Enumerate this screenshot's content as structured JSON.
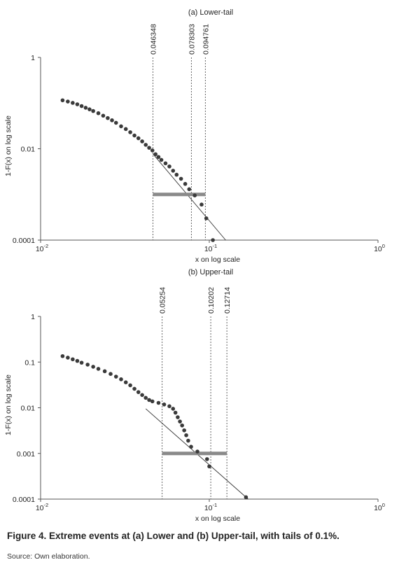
{
  "chart_data": [
    {
      "type": "scatter",
      "title": "(a) Lower-tail",
      "xlabel": "x on log scale",
      "ylabel": "1-F(x) on log scale",
      "xscale": "log",
      "yscale": "log",
      "xlim": [
        0.01,
        1
      ],
      "ylim": [
        0.0001,
        1
      ],
      "xticks": [
        {
          "base": "10",
          "exp": "-2"
        },
        {
          "base": "10",
          "exp": "-1"
        },
        {
          "base": "10",
          "exp": "0"
        }
      ],
      "yticks": [
        "1",
        "0.01",
        "0.0001"
      ],
      "thresholds": [
        "0.046348",
        "0.078303",
        "0.094761"
      ],
      "band": {
        "x0": 0.046348,
        "x1": 0.094761,
        "y": 0.001
      },
      "fit_line": [
        [
          0.046348,
          0.0077
        ],
        [
          0.125,
          0.0001
        ]
      ],
      "points": [
        [
          0.0135,
          0.115
        ],
        [
          0.0145,
          0.108
        ],
        [
          0.0155,
          0.101
        ],
        [
          0.0165,
          0.094
        ],
        [
          0.0175,
          0.086
        ],
        [
          0.0185,
          0.079
        ],
        [
          0.0195,
          0.073
        ],
        [
          0.0205,
          0.067
        ],
        [
          0.022,
          0.06
        ],
        [
          0.0235,
          0.053
        ],
        [
          0.025,
          0.047
        ],
        [
          0.0265,
          0.042
        ],
        [
          0.028,
          0.037
        ],
        [
          0.03,
          0.031
        ],
        [
          0.032,
          0.027
        ],
        [
          0.034,
          0.023
        ],
        [
          0.036,
          0.0195
        ],
        [
          0.038,
          0.017
        ],
        [
          0.04,
          0.0145
        ],
        [
          0.042,
          0.0122
        ],
        [
          0.044,
          0.0105
        ],
        [
          0.046,
          0.0092
        ],
        [
          0.048,
          0.0076
        ],
        [
          0.05,
          0.0066
        ],
        [
          0.052,
          0.0057
        ],
        [
          0.055,
          0.0048
        ],
        [
          0.058,
          0.0041
        ],
        [
          0.061,
          0.0033
        ],
        [
          0.064,
          0.0027
        ],
        [
          0.068,
          0.0022
        ],
        [
          0.072,
          0.0017
        ],
        [
          0.076,
          0.0013
        ],
        [
          0.082,
          0.00095
        ],
        [
          0.09,
          0.0006
        ],
        [
          0.096,
          0.0003
        ],
        [
          0.105,
          0.0001
        ]
      ]
    },
    {
      "type": "scatter",
      "title": "(b) Upper-tail",
      "xlabel": "x on log scale",
      "ylabel": "1-F(x) on log scale",
      "xscale": "log",
      "yscale": "log",
      "xlim": [
        0.01,
        1
      ],
      "ylim": [
        0.0001,
        1
      ],
      "xticks": [
        {
          "base": "10",
          "exp": "-2"
        },
        {
          "base": "10",
          "exp": "-1"
        },
        {
          "base": "10",
          "exp": "0"
        }
      ],
      "yticks": [
        "1",
        "0.1",
        "0.01",
        "0.001",
        "0.0001"
      ],
      "thresholds": [
        "0.05254",
        "0.10202",
        "0.12714"
      ],
      "band": {
        "x0": 0.05254,
        "x1": 0.12714,
        "y": 0.001
      },
      "fit_line": [
        [
          0.042,
          0.0095
        ],
        [
          0.17,
          0.0001
        ]
      ],
      "points": [
        [
          0.0135,
          0.135
        ],
        [
          0.0145,
          0.125
        ],
        [
          0.0155,
          0.115
        ],
        [
          0.0165,
          0.106
        ],
        [
          0.0175,
          0.097
        ],
        [
          0.019,
          0.088
        ],
        [
          0.0205,
          0.079
        ],
        [
          0.022,
          0.071
        ],
        [
          0.024,
          0.063
        ],
        [
          0.026,
          0.055
        ],
        [
          0.028,
          0.048
        ],
        [
          0.03,
          0.042
        ],
        [
          0.032,
          0.036
        ],
        [
          0.034,
          0.031
        ],
        [
          0.036,
          0.026
        ],
        [
          0.038,
          0.022
        ],
        [
          0.04,
          0.019
        ],
        [
          0.042,
          0.0165
        ],
        [
          0.044,
          0.0148
        ],
        [
          0.046,
          0.0138
        ],
        [
          0.05,
          0.0128
        ],
        [
          0.054,
          0.0118
        ],
        [
          0.058,
          0.0108
        ],
        [
          0.061,
          0.0095
        ],
        [
          0.063,
          0.0078
        ],
        [
          0.065,
          0.0062
        ],
        [
          0.067,
          0.005
        ],
        [
          0.069,
          0.0041
        ],
        [
          0.071,
          0.0032
        ],
        [
          0.073,
          0.0025
        ],
        [
          0.075,
          0.0019
        ],
        [
          0.078,
          0.0014
        ],
        [
          0.085,
          0.0011
        ],
        [
          0.097,
          0.00075
        ],
        [
          0.1,
          0.00052
        ],
        [
          0.165,
          0.00011
        ]
      ]
    }
  ],
  "caption": "Figure 4. Extreme events at (a) Lower and (b) Upper-tail, with tails of 0.1%.",
  "source": "Source: Own elaboration."
}
